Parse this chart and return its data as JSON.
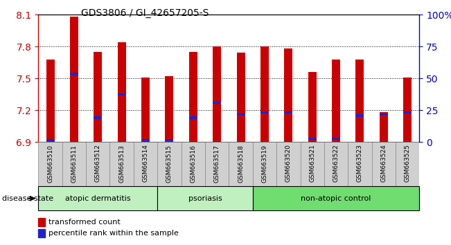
{
  "title": "GDS3806 / GI_42657205-S",
  "samples": [
    "GSM663510",
    "GSM663511",
    "GSM663512",
    "GSM663513",
    "GSM663514",
    "GSM663515",
    "GSM663516",
    "GSM663517",
    "GSM663518",
    "GSM663519",
    "GSM663520",
    "GSM663521",
    "GSM663522",
    "GSM663523",
    "GSM663524",
    "GSM663525"
  ],
  "transformed_count": [
    7.68,
    8.08,
    7.75,
    7.84,
    7.51,
    7.52,
    7.75,
    7.8,
    7.74,
    7.8,
    7.78,
    7.56,
    7.68,
    7.68,
    7.18,
    7.51
  ],
  "percentile_rank": [
    6.92,
    7.54,
    7.13,
    7.35,
    6.92,
    6.92,
    7.13,
    7.27,
    7.16,
    7.18,
    7.18,
    6.93,
    6.93,
    7.15,
    7.16,
    7.18
  ],
  "base_value": 6.9,
  "ylim_min": 6.9,
  "ylim_max": 8.1,
  "yticks": [
    6.9,
    7.2,
    7.5,
    7.8,
    8.1
  ],
  "right_yticks": [
    0,
    25,
    50,
    75,
    100
  ],
  "bar_color": "#cc0000",
  "percentile_color": "#2222cc",
  "bar_width": 0.35,
  "atopic_color": "#c0f0c0",
  "psoriasis_color": "#c0f0c0",
  "nonatopic_color": "#70dd70",
  "disease_state_label": "disease state",
  "legend_red_label": "transformed count",
  "legend_blue_label": "percentile rank within the sample",
  "red_axis_color": "#cc0000",
  "blue_axis_color": "#0000cc",
  "tickbox_color": "#d0d0d0",
  "group_border_color": "#000000"
}
